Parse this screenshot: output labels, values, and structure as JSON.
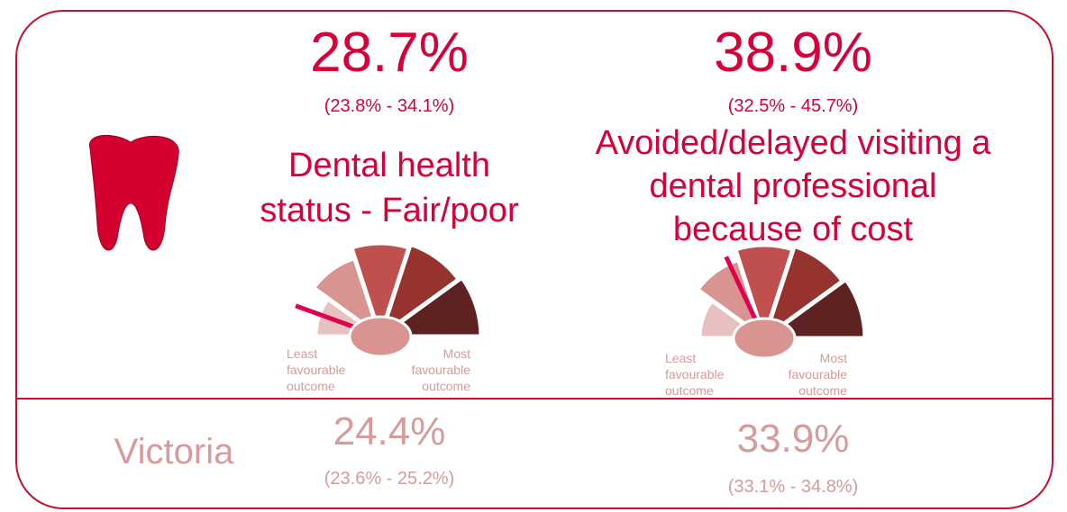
{
  "indicators": [
    {
      "value": "28.7%",
      "interval": "(23.8% - 34.1%)",
      "label": [
        "Dental health",
        "status - Fair/poor"
      ],
      "gauge": {
        "left": [
          "Least",
          "favourable",
          "outcome"
        ],
        "right": [
          "Most",
          "favourable",
          "outcome"
        ]
      },
      "victoria": {
        "value": "24.4%",
        "interval": "(23.6% - 25.2%)"
      }
    },
    {
      "value": "38.9%",
      "interval": "(32.5% - 45.7%)",
      "label": [
        "Avoided/delayed visiting a",
        "dental professional",
        "because of cost"
      ],
      "gauge": {
        "left": [
          "Least",
          "favourable",
          "outcome"
        ],
        "right": [
          "Most",
          "favourable",
          "outcome"
        ]
      },
      "victoria": {
        "value": "33.9%",
        "interval": "(33.1% - 34.8%)"
      }
    }
  ],
  "victoria_label": "Victoria"
}
